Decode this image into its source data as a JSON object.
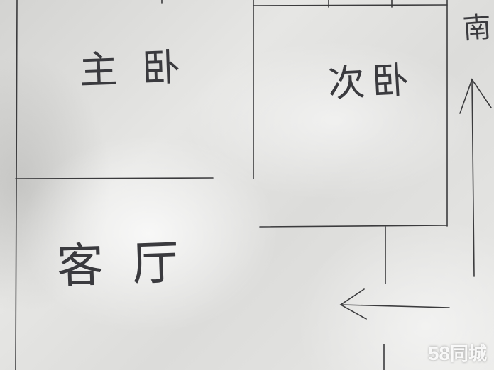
{
  "floor_plan": {
    "rooms": {
      "master_bedroom": "主卧",
      "second_bedroom": "次卧",
      "living_room": "客厅"
    },
    "orientation": {
      "direction": "南",
      "arrow_icon": "arrow-up-icon"
    },
    "entrance_arrow_icon": "arrow-left-icon",
    "ink_color": "#3b3b3d"
  },
  "watermark": {
    "number": "58",
    "text": "同城",
    "color": "#ffffff"
  }
}
